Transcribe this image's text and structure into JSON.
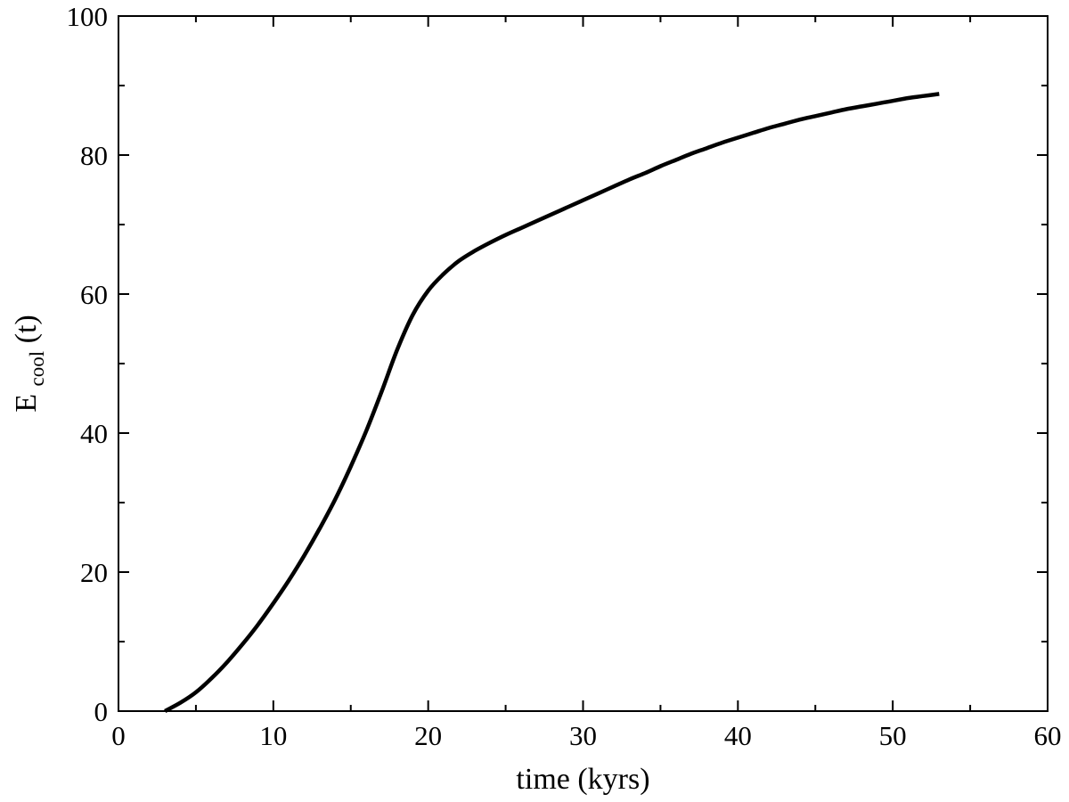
{
  "chart_data": {
    "type": "line",
    "title": "",
    "xlabel": "time (kyrs)",
    "ylabel": {
      "main": "E",
      "subscript": "cool",
      "suffix": " (t)"
    },
    "xlim": [
      0,
      60
    ],
    "ylim": [
      0,
      100
    ],
    "x_ticks": [
      "0",
      "10",
      "20",
      "30",
      "40",
      "50",
      "60"
    ],
    "y_ticks": [
      "0",
      "20",
      "40",
      "60",
      "80",
      "100"
    ],
    "grid": false,
    "legend": "none",
    "series": [
      {
        "color": "#000000",
        "x": [
          3,
          4,
          5,
          6,
          7,
          8,
          9,
          10,
          11,
          12,
          13,
          14,
          15,
          16,
          17,
          18,
          19,
          20,
          21,
          22,
          23,
          24,
          25,
          26,
          27,
          28,
          29,
          30,
          31,
          32,
          33,
          34,
          35,
          36,
          37,
          38,
          39,
          40,
          41,
          42,
          43,
          44,
          45,
          46,
          47,
          48,
          49,
          50,
          51,
          52,
          53
        ],
        "y": [
          0,
          1.2,
          2.7,
          4.7,
          7,
          9.6,
          12.4,
          15.5,
          18.8,
          22.4,
          26.3,
          30.5,
          35.2,
          40.3,
          46,
          52,
          57,
          60.5,
          62.9,
          64.8,
          66.2,
          67.4,
          68.5,
          69.5,
          70.5,
          71.5,
          72.5,
          73.5,
          74.5,
          75.5,
          76.5,
          77.4,
          78.4,
          79.3,
          80.2,
          81,
          81.8,
          82.5,
          83.2,
          83.9,
          84.5,
          85.1,
          85.6,
          86.1,
          86.6,
          87,
          87.4,
          87.8,
          88.2,
          88.5,
          88.8
        ]
      }
    ]
  }
}
